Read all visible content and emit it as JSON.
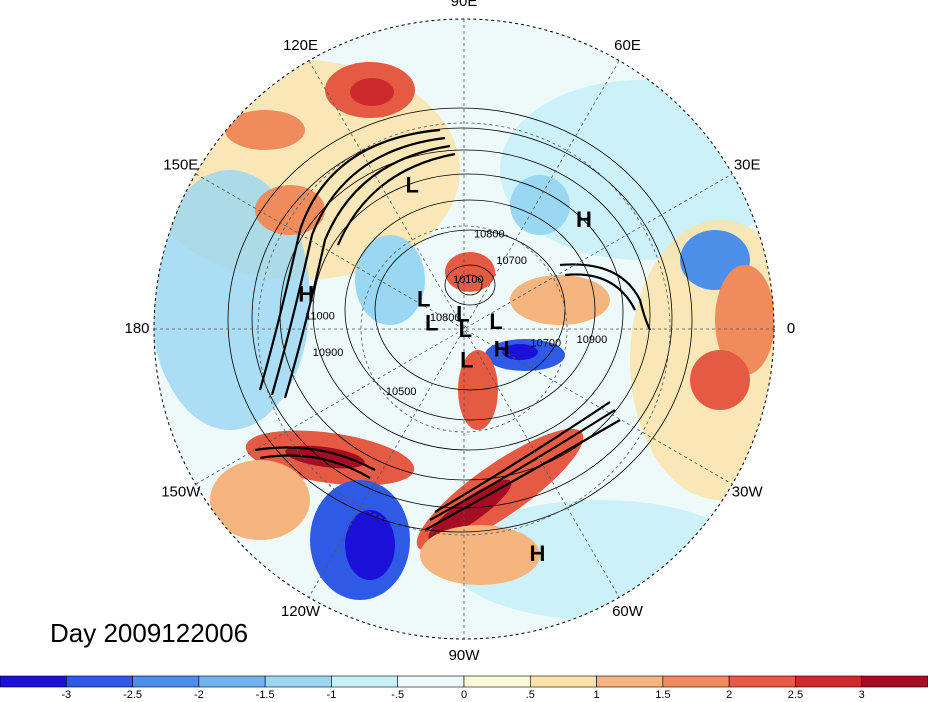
{
  "map": {
    "projection": "polar-stereographic-north",
    "field": "shaded anomaly with height contours",
    "lon_labels": [
      {
        "text": "90E",
        "lon": 90
      },
      {
        "text": "60E",
        "lon": 60
      },
      {
        "text": "30E",
        "lon": 30
      },
      {
        "text": "0",
        "lon": 0
      },
      {
        "text": "30W",
        "lon": -30
      },
      {
        "text": "60W",
        "lon": -60
      },
      {
        "text": "90W",
        "lon": -90
      },
      {
        "text": "120W",
        "lon": -120
      },
      {
        "text": "150W",
        "lon": -150
      },
      {
        "text": "180",
        "lon": 180
      },
      {
        "text": "150E",
        "lon": 150
      },
      {
        "text": "120E",
        "lon": 120
      }
    ],
    "pressure_centers": [
      {
        "text": "L",
        "lon": 110,
        "lat": 38
      },
      {
        "text": "H",
        "lon": 42,
        "lat": 35
      },
      {
        "text": "H",
        "lon": 168,
        "lat": 35
      },
      {
        "text": "L",
        "lon": 145,
        "lat": 72
      },
      {
        "text": "L",
        "lon": 95,
        "lat": 85
      },
      {
        "text": "L",
        "lon": 172,
        "lat": 78
      },
      {
        "text": "L",
        "lon": -60,
        "lat": 89
      },
      {
        "text": "L",
        "lon": 10,
        "lat": 78
      },
      {
        "text": "H",
        "lon": -30,
        "lat": 74
      },
      {
        "text": "L",
        "lon": -85,
        "lat": 78
      },
      {
        "text": "H",
        "lon": -72,
        "lat": 15
      }
    ],
    "contour_labels": [
      {
        "text": "10800",
        "lon": 75,
        "lat": 55
      },
      {
        "text": "10700",
        "lon": 55,
        "lat": 60
      },
      {
        "text": "10100",
        "lon": 85,
        "lat": 72
      },
      {
        "text": "11000",
        "lon": 175,
        "lat": 40
      },
      {
        "text": "10900",
        "lon": -170,
        "lat": 42
      },
      {
        "text": "10800",
        "lon": 150,
        "lat": 82
      },
      {
        "text": "10500",
        "lon": -135,
        "lat": 58
      },
      {
        "text": "10700",
        "lon": -10,
        "lat": 60
      },
      {
        "text": "10900",
        "lon": -5,
        "lat": 45
      }
    ],
    "colors": {
      "ocean_grid": "#555555",
      "contour": "#000000"
    }
  },
  "title": {
    "day_label": "Day 2009122006"
  },
  "colorbar": {
    "colors": [
      "#1a10d8",
      "#2f5ae6",
      "#4c8ee8",
      "#6fb4ef",
      "#9ad7f3",
      "#c8f0f7",
      "#eefaf9",
      "#fcf8da",
      "#fbe2a6",
      "#f6b47e",
      "#f08b5c",
      "#e55a43",
      "#cc2a2c",
      "#a50e22"
    ],
    "tick_labels": [
      "-3",
      "-2.5",
      "-2",
      "-1.5",
      "-1",
      "-.5",
      "0",
      ".5",
      "1",
      "1.5",
      "2",
      "2.5",
      "3"
    ]
  }
}
